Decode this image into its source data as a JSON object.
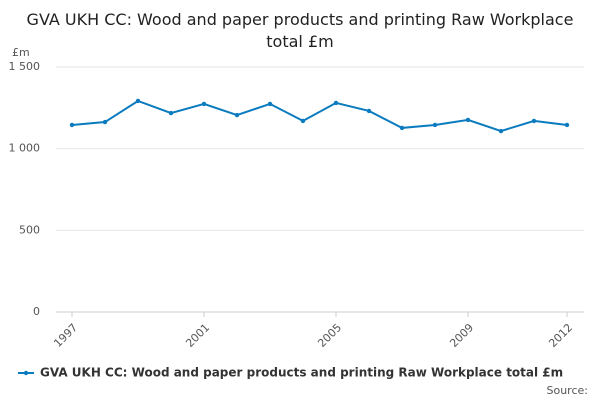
{
  "chart_data": {
    "type": "line",
    "title": "GVA UKH CC: Wood and paper products and printing Raw Workplace total £m",
    "y_label": "£m",
    "source": "Source:",
    "x": [
      1997,
      1998,
      1999,
      2000,
      2001,
      2002,
      2003,
      2004,
      2005,
      2006,
      2007,
      2008,
      2009,
      2010,
      2011,
      2012
    ],
    "series": [
      {
        "name": "GVA UKH CC: Wood and paper products and printing Raw Workplace total £m",
        "color": "#0a7bbf",
        "values": [
          1145,
          1163,
          1292,
          1218,
          1274,
          1206,
          1274,
          1170,
          1280,
          1231,
          1127,
          1145,
          1176,
          1108,
          1170,
          1145
        ]
      }
    ],
    "xlim": [
      1997,
      2012
    ],
    "xticks": [
      1997,
      2001,
      2005,
      2009,
      2012
    ],
    "ylim": [
      0,
      1500
    ],
    "yticks": [
      0,
      500,
      {
        "value": 1000,
        "label": "1 000"
      },
      {
        "value": 1500,
        "label": "1 500"
      }
    ],
    "grid": true
  }
}
